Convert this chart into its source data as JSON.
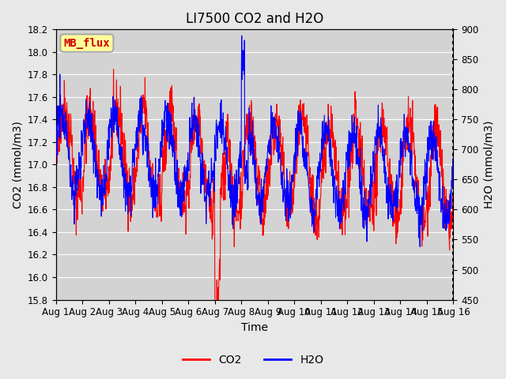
{
  "title": "LI7500 CO2 and H2O",
  "xlabel": "Time",
  "ylabel_left": "CO2 (mmol/m3)",
  "ylabel_right": "H2O (mmol/m3)",
  "co2_ylim": [
    15.8,
    18.2
  ],
  "h2o_ylim": [
    450,
    900
  ],
  "co2_yticks": [
    15.8,
    16.0,
    16.2,
    16.4,
    16.6,
    16.8,
    17.0,
    17.2,
    17.4,
    17.6,
    17.8,
    18.0,
    18.2
  ],
  "h2o_yticks": [
    450,
    500,
    550,
    600,
    650,
    700,
    750,
    800,
    850,
    900
  ],
  "xtick_positions": [
    0,
    1,
    2,
    3,
    4,
    5,
    6,
    7,
    8,
    9,
    10,
    11,
    12,
    13,
    14,
    15
  ],
  "xtick_labels": [
    "Aug 1",
    "Aug 2",
    "Aug 3",
    "Aug 4",
    "Aug 5",
    "Aug 6",
    "Aug 7",
    "Aug 8",
    "Aug 9",
    "Aug 10",
    "Aug 11",
    "Aug 12",
    "Aug 13",
    "Aug 14",
    "Aug 15",
    "Aug 16"
  ],
  "co2_color": "#FF0000",
  "h2o_color": "#0000FF",
  "bg_color": "#E8E8E8",
  "plot_bg_color": "#D3D3D3",
  "annotation_text": "MB_flux",
  "annotation_bg": "#FFFF99",
  "annotation_border": "#AAAAAA",
  "legend_co2": "CO2",
  "legend_h2o": "H2O",
  "title_fontsize": 12,
  "axis_fontsize": 10,
  "tick_fontsize": 8.5,
  "legend_fontsize": 10,
  "xlim": [
    0,
    15
  ]
}
